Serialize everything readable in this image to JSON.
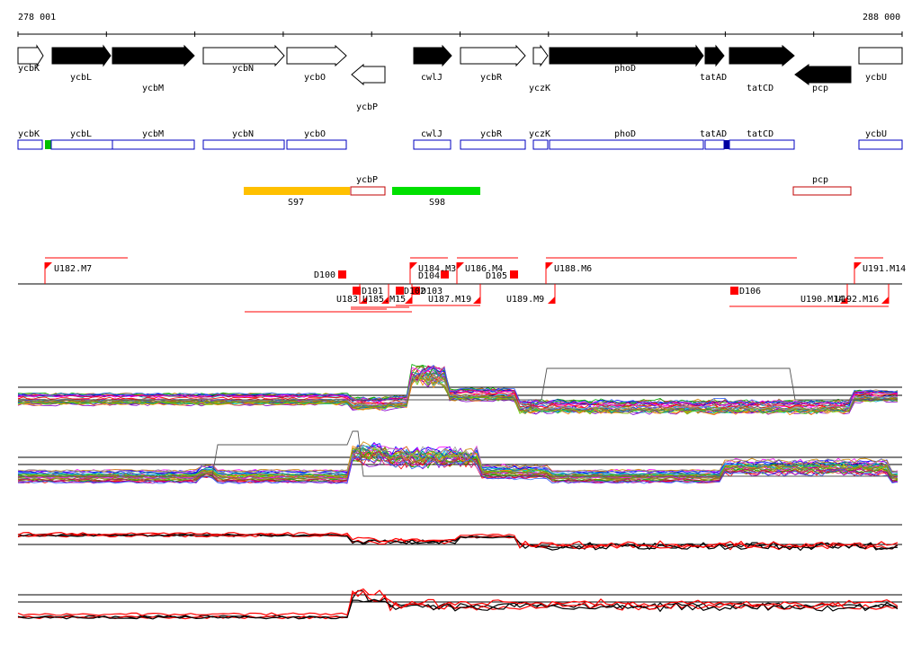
{
  "coordinates": {
    "start": "278 001",
    "end": "288 000"
  },
  "genes": [
    {
      "name": "ycbK",
      "strand": "+",
      "filled": false
    },
    {
      "name": "ycbL",
      "strand": "+",
      "filled": true
    },
    {
      "name": "ycbM",
      "strand": "+",
      "filled": true
    },
    {
      "name": "ycbN",
      "strand": "+",
      "filled": false
    },
    {
      "name": "ycbO",
      "strand": "+",
      "filled": false
    },
    {
      "name": "ycbP",
      "strand": "-",
      "filled": false
    },
    {
      "name": "cwlJ",
      "strand": "+",
      "filled": true
    },
    {
      "name": "ycbR",
      "strand": "+",
      "filled": false
    },
    {
      "name": "yczK",
      "strand": "+",
      "filled": false
    },
    {
      "name": "phoD",
      "strand": "+",
      "filled": true
    },
    {
      "name": "tatAD",
      "strand": "+",
      "filled": true
    },
    {
      "name": "tatCD",
      "strand": "+",
      "filled": true
    },
    {
      "name": "pcp",
      "strand": "-",
      "filled": true
    },
    {
      "name": "ycbU",
      "strand": "+",
      "filled": false
    }
  ],
  "cds_boxes": [
    "ycbK",
    "ycbL",
    "ycbM",
    "ycbN",
    "ycbO",
    "cwlJ",
    "ycbR",
    "yczK",
    "phoD",
    "tatAD",
    "tatCD",
    "ycbU"
  ],
  "minus_boxes": [
    "ycbP",
    "pcp"
  ],
  "segments": [
    {
      "name": "S97",
      "color": "#ffc000"
    },
    {
      "name": "S98",
      "color": "#00e000"
    }
  ],
  "features_above": [
    "U182.M7",
    "U184.M3",
    "U186.M4",
    "U188.M6",
    "U191.M14",
    "D100",
    "D104",
    "D105"
  ],
  "features_below": [
    "U183",
    "U185.M15",
    "U187.M19",
    "U189.M9",
    "U190.M14",
    "U192.M16",
    "D101",
    "D102",
    "D103",
    "D106"
  ],
  "colors": {
    "gene_fill": "#000000",
    "box_outline": "#0000c0",
    "box_mark_green": "#00c000",
    "box_mark_blue": "#0000a0",
    "feature_red": "#ff0000",
    "segment_minus": "#c00000"
  },
  "panels": [
    "expression-panel-1",
    "expression-panel-2",
    "expression-panel-3",
    "expression-panel-4"
  ]
}
